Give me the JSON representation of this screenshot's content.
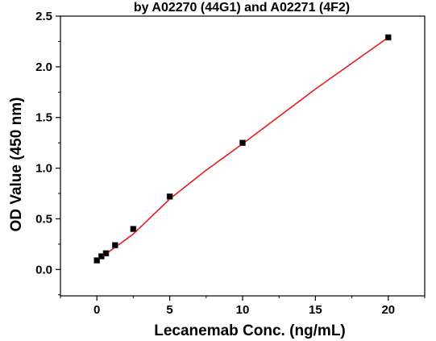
{
  "chart_data": {
    "type": "scatter",
    "title": "by A02270 (44G1) and A02271 (4F2)",
    "xlabel": "Lecanemab Conc. (ng/mL)",
    "ylabel": "OD Value (450 nm)",
    "xlim": [
      -2.5,
      22.5
    ],
    "ylim": [
      -0.26,
      2.5
    ],
    "xticks": [
      0,
      5,
      10,
      15,
      20
    ],
    "xtick_labels": [
      "0",
      "5",
      "10",
      "15",
      "20"
    ],
    "yticks": [
      0.0,
      0.5,
      1.0,
      1.5,
      2.0,
      2.5
    ],
    "ytick_labels": [
      "0.0",
      "0.5",
      "1.0",
      "1.5",
      "2.0",
      "2.5"
    ],
    "grid": false,
    "legend": "none",
    "series": [
      {
        "x": [
          0,
          0.3125,
          0.625,
          1.25,
          2.5,
          5,
          10,
          20
        ],
        "y": [
          0.09,
          0.13,
          0.16,
          0.24,
          0.4,
          0.72,
          1.25,
          2.29
        ],
        "marker": "square",
        "marker_color": "#000000"
      }
    ],
    "fit_line": {
      "color": "#e8191c",
      "x": [
        0,
        0.3125,
        0.625,
        1.25,
        2.5,
        5,
        7.5,
        10,
        15,
        20
      ],
      "y": [
        0.095,
        0.125,
        0.155,
        0.218,
        0.35,
        0.695,
        0.98,
        1.24,
        1.78,
        2.29
      ]
    }
  }
}
